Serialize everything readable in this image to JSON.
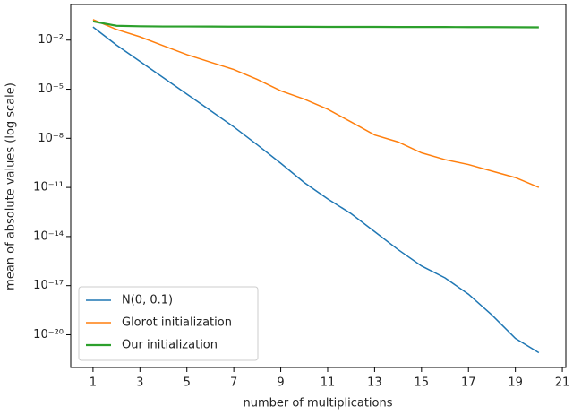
{
  "chart_data": {
    "type": "line",
    "x_label": "number of multiplications",
    "y_label": "mean of absolute values (log scale)",
    "x": [
      1,
      2,
      3,
      4,
      5,
      6,
      7,
      8,
      9,
      10,
      11,
      12,
      13,
      14,
      15,
      16,
      17,
      18,
      19,
      20
    ],
    "series": [
      {
        "name": "N(0, 0.1)",
        "color": "#1f77b4",
        "values": [
          0.063,
          0.005,
          0.0005,
          5e-05,
          5e-06,
          5e-07,
          5e-08,
          4e-09,
          3e-10,
          2e-11,
          2e-12,
          2.5e-13,
          2e-14,
          1.6e-15,
          1.6e-16,
          3e-17,
          3e-18,
          1.6e-19,
          6e-21,
          8e-22
        ]
      },
      {
        "name": "Glorot initialization",
        "color": "#ff7f0e",
        "values": [
          0.18,
          0.045,
          0.016,
          0.0045,
          0.0013,
          0.00045,
          0.00016,
          4e-05,
          8e-06,
          2.5e-06,
          6e-07,
          1e-07,
          1.6e-08,
          6e-09,
          1.3e-09,
          5e-10,
          2.5e-10,
          1e-10,
          4e-11,
          1e-11
        ]
      },
      {
        "name": "Our initialization",
        "color": "#2ca02c",
        "values": [
          0.14,
          0.075,
          0.07,
          0.068,
          0.068,
          0.067,
          0.066,
          0.066,
          0.065,
          0.065,
          0.064,
          0.064,
          0.064,
          0.063,
          0.063,
          0.063,
          0.062,
          0.062,
          0.061,
          0.06
        ]
      }
    ],
    "xlim": [
      0.05,
      21.15
    ],
    "xticks": [
      1,
      3,
      5,
      7,
      9,
      11,
      13,
      15,
      17,
      19,
      21
    ],
    "ylim": [
      1e-22,
      1.5
    ],
    "log_y": true,
    "yticks": [
      {
        "value": 1e-20,
        "label": "10⁻²⁰"
      },
      {
        "value": 1e-17,
        "label": "10⁻¹⁷"
      },
      {
        "value": 1e-14,
        "label": "10⁻¹⁴"
      },
      {
        "value": 1e-11,
        "label": "10⁻¹¹"
      },
      {
        "value": 1e-08,
        "label": "10⁻⁸"
      },
      {
        "value": 1e-05,
        "label": "10⁻⁵"
      },
      {
        "value": 0.01,
        "label": "10⁻²"
      }
    ],
    "legend": "lower left",
    "grid": false
  }
}
